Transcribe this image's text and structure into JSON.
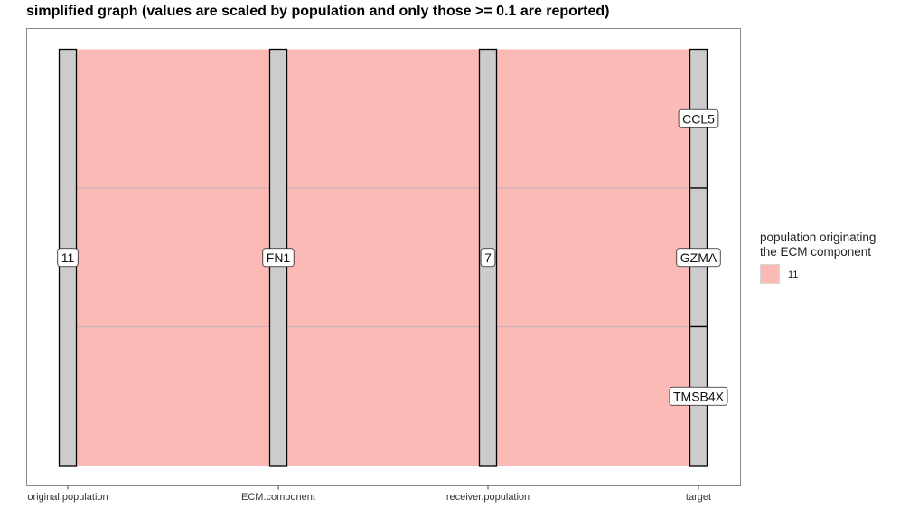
{
  "title": "simplified graph (values are scaled by population and only those >= 0.1 are reported)",
  "colors": {
    "flow_fill": "#fbbab6",
    "flow_divider": "#c8b4b2",
    "stratum_fill": "#cccccc",
    "stratum_stroke": "#000000",
    "panel_border": "#888888",
    "label_box": "#ffffff"
  },
  "chart_data": {
    "type": "alluvial",
    "axes": [
      "original.population",
      "ECM.component",
      "receiver.population",
      "target"
    ],
    "strata": [
      [
        {
          "label": "11",
          "value": 3
        }
      ],
      [
        {
          "label": "FN1",
          "value": 3
        }
      ],
      [
        {
          "label": "7",
          "value": 3
        }
      ],
      [
        {
          "label": "CCL5",
          "value": 1
        },
        {
          "label": "GZMA",
          "value": 1
        },
        {
          "label": "TMSB4X",
          "value": 1
        }
      ]
    ],
    "flows": [
      {
        "path": [
          "11",
          "FN1",
          "7",
          "CCL5"
        ],
        "value": 1,
        "group": "11"
      },
      {
        "path": [
          "11",
          "FN1",
          "7",
          "GZMA"
        ],
        "value": 1,
        "group": "11"
      },
      {
        "path": [
          "11",
          "FN1",
          "7",
          "TMSB4X"
        ],
        "value": 1,
        "group": "11"
      }
    ],
    "legend": {
      "title_lines": [
        "population originating",
        "the ECM component"
      ],
      "entries": [
        {
          "label": "11",
          "color": "#fbbab6"
        }
      ],
      "position": "right"
    }
  }
}
